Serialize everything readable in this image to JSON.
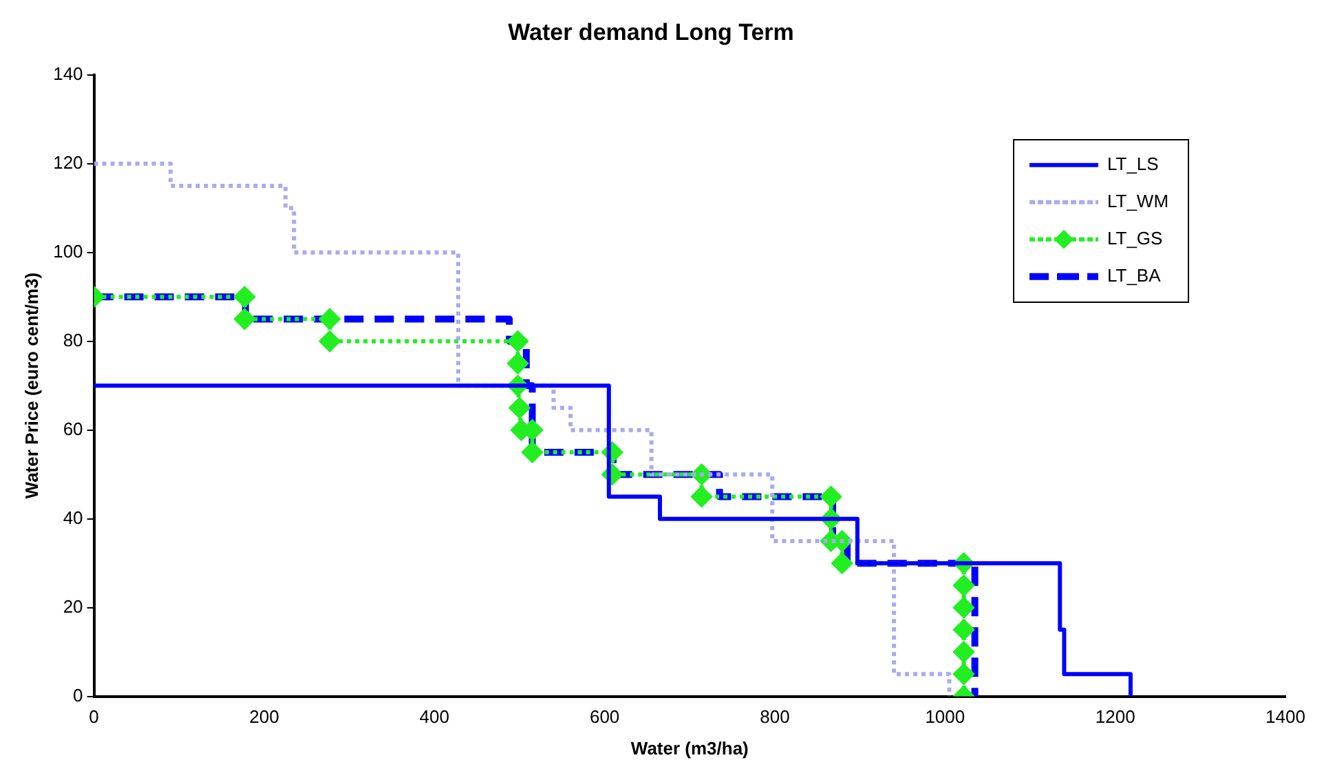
{
  "chart_data": {
    "type": "step",
    "title": "Water demand Long Term",
    "xlabel": "Water (m3/ha)",
    "ylabel": "Water Price (euro cent/m3)",
    "xlim": [
      0,
      1400
    ],
    "xticks": [
      0,
      200,
      400,
      600,
      800,
      1000,
      1200,
      1400
    ],
    "ylim": [
      0,
      140
    ],
    "yticks": [
      0,
      20,
      40,
      60,
      80,
      100,
      120,
      140
    ],
    "grid": false,
    "legend": "top right",
    "marker": "none",
    "series": [
      {
        "name": "LT_LS",
        "color": "#0000ff",
        "line_style": "solid",
        "x": [
          0,
          605,
          665,
          897,
          1135,
          1140,
          1218
        ],
        "values": [
          70,
          45,
          40,
          30,
          15,
          5,
          0
        ]
      },
      {
        "name": "LT_WM",
        "color": "#aaaaee",
        "line_style": "dotted",
        "x": [
          0,
          90,
          225,
          235,
          428,
          540,
          560,
          655,
          797,
          940,
          1005
        ],
        "values": [
          120,
          115,
          110,
          100,
          70,
          65,
          60,
          50,
          35,
          5,
          0
        ]
      },
      {
        "name": "LT_GS",
        "type": "line",
        "color": "#22ee22",
        "line_style": "dotted",
        "marker": "diamond",
        "x": [
          0,
          177,
          177,
          277,
          277,
          498,
          498,
          498,
          500,
          502,
          515,
          515,
          609,
          609,
          714,
          714,
          866,
          866,
          866,
          879,
          879,
          1022,
          1022,
          1022,
          1022,
          1022,
          1022,
          1022
        ],
        "values": [
          90,
          90,
          85,
          85,
          80,
          80,
          75,
          70,
          65,
          60,
          60,
          55,
          55,
          50,
          50,
          45,
          45,
          40,
          35,
          35,
          30,
          30,
          25,
          20,
          15,
          10,
          5,
          0
        ]
      },
      {
        "name": "LT_BA",
        "color": "#0000ff",
        "line_style": "dashed",
        "x": [
          0,
          178,
          488,
          508,
          515,
          610,
          735,
          868,
          885,
          1035
        ],
        "values": [
          90,
          85,
          80,
          70,
          55,
          50,
          45,
          35,
          30,
          0
        ]
      }
    ]
  }
}
